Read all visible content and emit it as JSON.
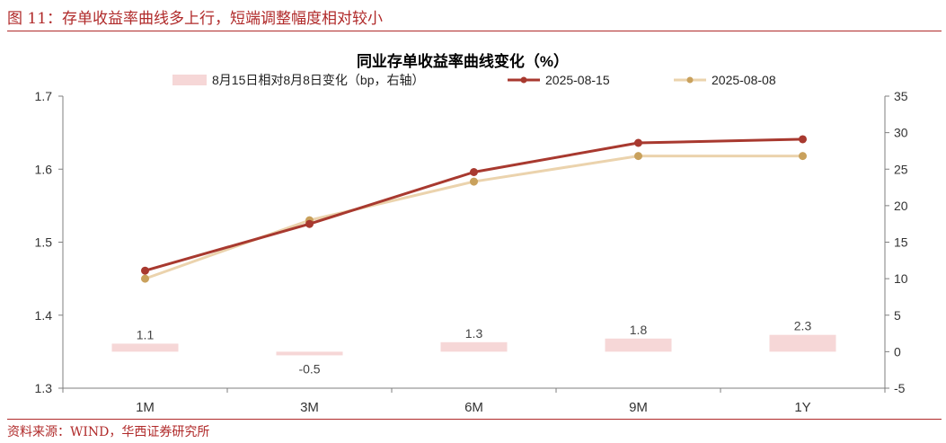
{
  "figure": {
    "title": "图 11：存单收益率曲线多上行，短端调整幅度相对较小",
    "source": "资料来源：WIND，华西证券研究所"
  },
  "colors": {
    "accent": "#b02a2a",
    "series_0815": "#a8392f",
    "series_0808_line": "#ebd3ad",
    "series_0808_marker": "#c9a15c",
    "bar": "#f6d7d7",
    "axis": "#7f7f7f",
    "text": "#333333"
  },
  "chart_data": {
    "type": "bar+line",
    "title": "同业存单收益率曲线变化（%）",
    "categories": [
      "1M",
      "3M",
      "6M",
      "9M",
      "1Y"
    ],
    "y_left": {
      "min": 1.3,
      "max": 1.7,
      "step": 0.1,
      "ticks": [
        "1.3",
        "1.4",
        "1.5",
        "1.6",
        "1.7"
      ]
    },
    "y_right": {
      "min": -5,
      "max": 35,
      "step": 5,
      "ticks": [
        "-5",
        "0",
        "5",
        "10",
        "15",
        "20",
        "25",
        "30",
        "35"
      ]
    },
    "bar_series": {
      "name": "8月15日相对8月8日变化（bp，右轴）",
      "axis": "right",
      "values": [
        1.1,
        -0.5,
        1.3,
        1.8,
        2.3
      ],
      "labels": [
        "1.1",
        "-0.5",
        "1.3",
        "1.8",
        "2.3"
      ]
    },
    "line_series": [
      {
        "name": "2025-08-15",
        "axis": "left",
        "values": [
          1.461,
          1.525,
          1.596,
          1.636,
          1.641
        ]
      },
      {
        "name": "2025-08-08",
        "axis": "left",
        "values": [
          1.45,
          1.53,
          1.583,
          1.618,
          1.618
        ]
      }
    ],
    "legend_position": "top",
    "grid": false
  }
}
